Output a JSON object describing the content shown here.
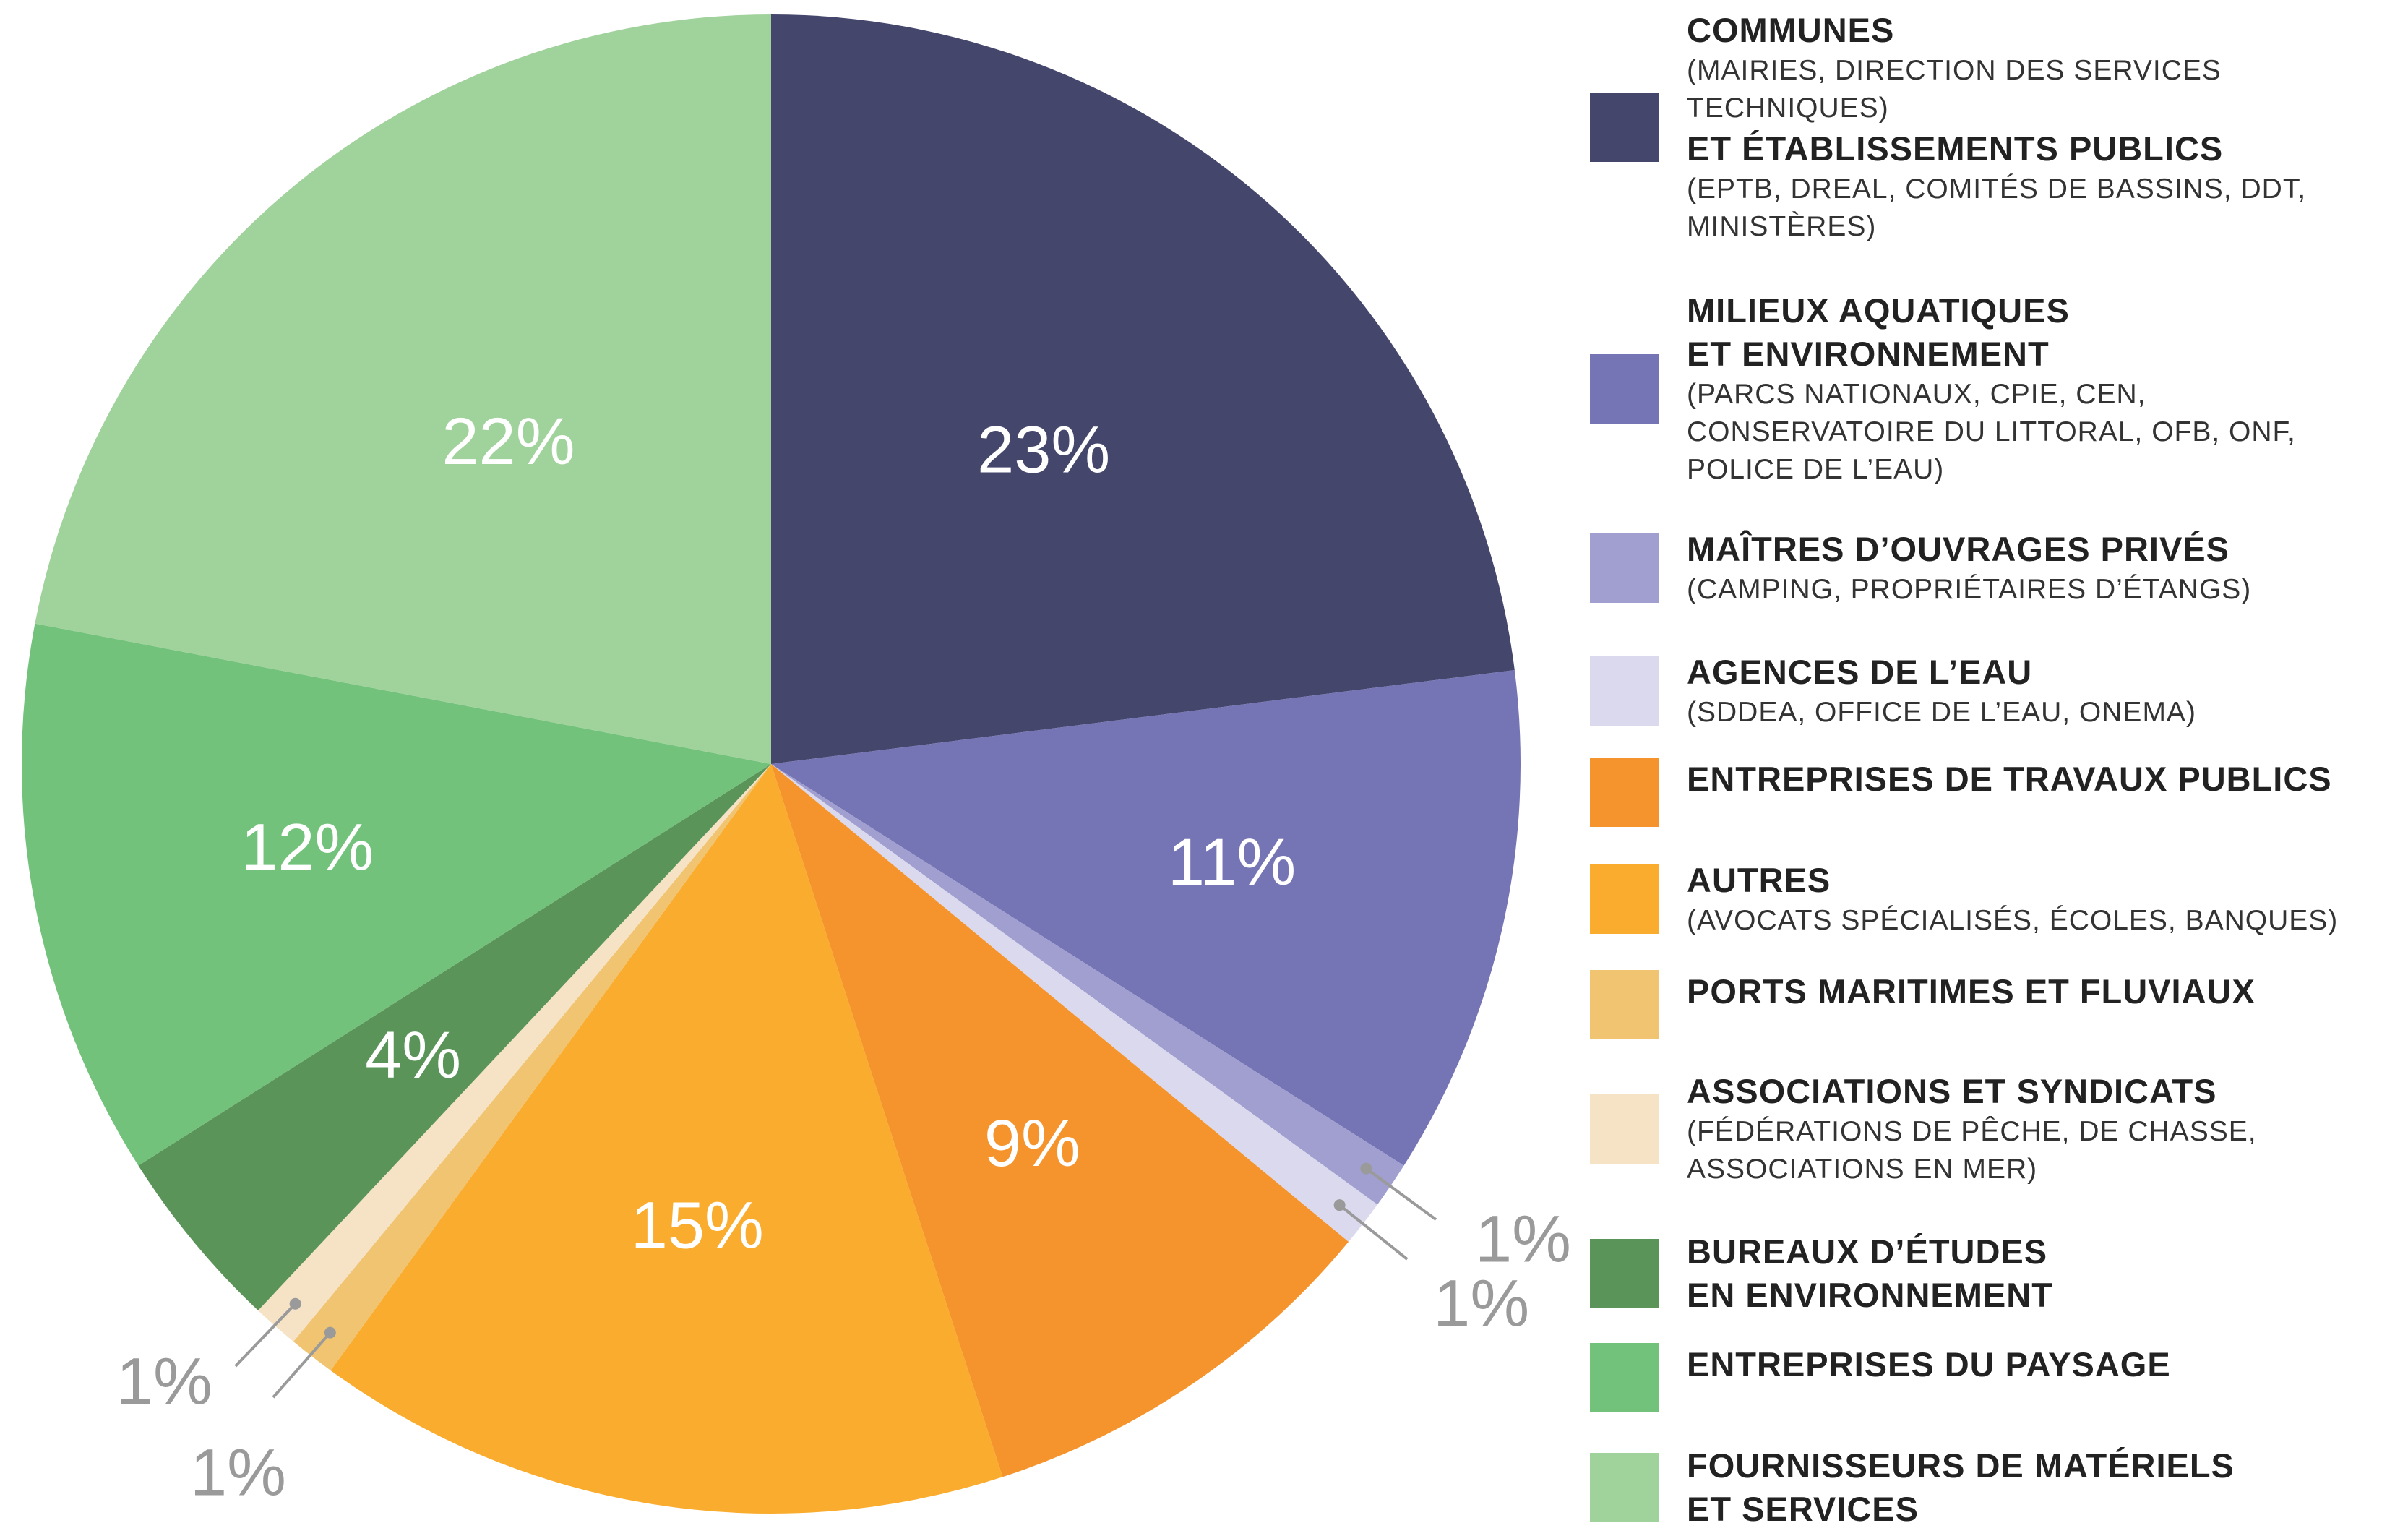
{
  "chart_data": {
    "type": "pie",
    "slices": [
      {
        "label": "COMMUNES / ET ÉTABLISSEMENTS PUBLICS",
        "value": 23,
        "value_label": "23%",
        "color": "#44466c"
      },
      {
        "label": "MILIEUX AQUATIQUES ET ENVIRONNEMENT",
        "value": 11,
        "value_label": "11%",
        "color": "#7574b5"
      },
      {
        "label": "MAÎTRES D’OUVRAGES PRIVÉS",
        "value": 1,
        "value_label": "1%",
        "color": "#a09fcf"
      },
      {
        "label": "AGENCES DE L’EAU",
        "value": 1,
        "value_label": "1%",
        "color": "#dbd9ee"
      },
      {
        "label": "ENTREPRISES DE TRAVAUX PUBLICS",
        "value": 9,
        "value_label": "9%",
        "color": "#f5942c"
      },
      {
        "label": "AUTRES",
        "value": 15,
        "value_label": "15%",
        "color": "#f9ac2e"
      },
      {
        "label": "PORTS MARITIMES ET FLUVIAUX",
        "value": 1,
        "value_label": "1%",
        "color": "#f1c472"
      },
      {
        "label": "ASSOCIATIONS ET SYNDICATS",
        "value": 1,
        "value_label": "1%",
        "color": "#f6e3c6"
      },
      {
        "label": "BUREAUX D’ÉTUDES EN ENVIRONNEMENT",
        "value": 4,
        "value_label": "4%",
        "color": "#5a9458"
      },
      {
        "label": "ENTREPRISES DU PAYSAGE",
        "value": 12,
        "value_label": "12%",
        "color": "#73c27b"
      },
      {
        "label": "FOURNISSEURS DE MATÉRIELS ET SERVICES",
        "value": 22,
        "value_label": "22%",
        "color": "#a0d29b"
      }
    ],
    "legend_placement": "right"
  },
  "legend": [
    {
      "color": "#44466c",
      "lines": [
        {
          "text": "COMMUNES",
          "bold": true
        },
        {
          "text": "(MAIRIES, DIRECTION DES SERVICES",
          "bold": false
        },
        {
          "text": "TECHNIQUES)",
          "bold": false
        },
        {
          "text": "ET ÉTABLISSEMENTS PUBLICS",
          "bold": true
        },
        {
          "text": "(EPTB, DREAL, COMITÉS DE BASSINS, DDT,",
          "bold": false
        },
        {
          "text": "MINISTÈRES)",
          "bold": false
        }
      ]
    },
    {
      "color": "#7574b5",
      "lines": [
        {
          "text": "MILIEUX AQUATIQUES",
          "bold": true
        },
        {
          "text": "ET ENVIRONNEMENT",
          "bold": true
        },
        {
          "text": "(PARCS NATIONAUX, CPIE, CEN,",
          "bold": false
        },
        {
          "text": "CONSERVATOIRE DU LITTORAL, OFB, ONF,",
          "bold": false
        },
        {
          "text": "POLICE DE L’EAU)",
          "bold": false
        }
      ]
    },
    {
      "color": "#a09fcf",
      "lines": [
        {
          "text": "MAÎTRES D’OUVRAGES PRIVÉS",
          "bold": true
        },
        {
          "text": "(CAMPING, PROPRIÉTAIRES D’ÉTANGS)",
          "bold": false
        }
      ]
    },
    {
      "color": "#dbd9ee",
      "lines": [
        {
          "text": "AGENCES DE L’EAU",
          "bold": true
        },
        {
          "text": "(SDDEA, OFFICE DE L’EAU, ONEMA)",
          "bold": false
        }
      ]
    },
    {
      "color": "#f5942c",
      "lines": [
        {
          "text": "ENTREPRISES DE TRAVAUX PUBLICS",
          "bold": true
        }
      ]
    },
    {
      "color": "#f9ac2e",
      "lines": [
        {
          "text": "AUTRES",
          "bold": true
        },
        {
          "text": "(AVOCATS SPÉCIALISÉS, ÉCOLES, BANQUES)",
          "bold": false
        }
      ]
    },
    {
      "color": "#f1c472",
      "lines": [
        {
          "text": "PORTS MARITIMES ET FLUVIAUX",
          "bold": true
        }
      ]
    },
    {
      "color": "#f6e3c6",
      "lines": [
        {
          "text": "ASSOCIATIONS ET SYNDICATS",
          "bold": true
        },
        {
          "text": "(FÉDÉRATIONS DE PÊCHE, DE CHASSE,",
          "bold": false
        },
        {
          "text": "ASSOCIATIONS EN MER)",
          "bold": false
        }
      ]
    },
    {
      "color": "#5a9458",
      "lines": [
        {
          "text": "BUREAUX D’ÉTUDES",
          "bold": true
        },
        {
          "text": "EN ENVIRONNEMENT",
          "bold": true
        }
      ]
    },
    {
      "color": "#73c27b",
      "lines": [
        {
          "text": "ENTREPRISES DU PAYSAGE",
          "bold": true
        }
      ]
    },
    {
      "color": "#a0d29b",
      "lines": [
        {
          "text": "FOURNISSEURS DE MATÉRIELS",
          "bold": true
        },
        {
          "text": "ET SERVICES",
          "bold": true
        }
      ]
    }
  ]
}
